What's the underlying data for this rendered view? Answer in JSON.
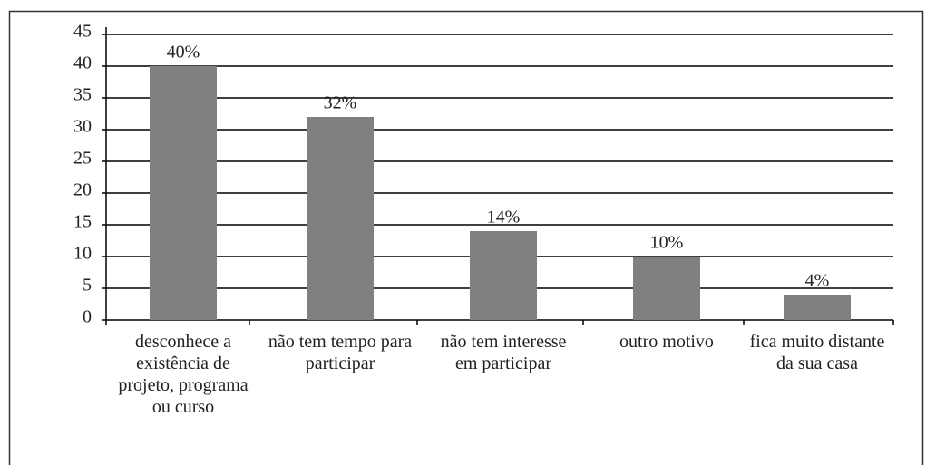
{
  "chart_data": {
    "type": "bar",
    "categories": [
      "desconhece a existência de projeto, programa ou curso",
      "não tem tempo para participar",
      "não tem interesse em participar",
      "outro motivo",
      "fica muito distante da sua casa"
    ],
    "values": [
      40,
      32,
      14,
      10,
      4
    ],
    "value_labels": [
      "40%",
      "32%",
      "14%",
      "10%",
      "4%"
    ],
    "color": "#808080",
    "ylim": [
      0,
      45
    ],
    "yticks": [
      0,
      5,
      10,
      15,
      20,
      25,
      30,
      35,
      40,
      45
    ],
    "grid": true
  }
}
